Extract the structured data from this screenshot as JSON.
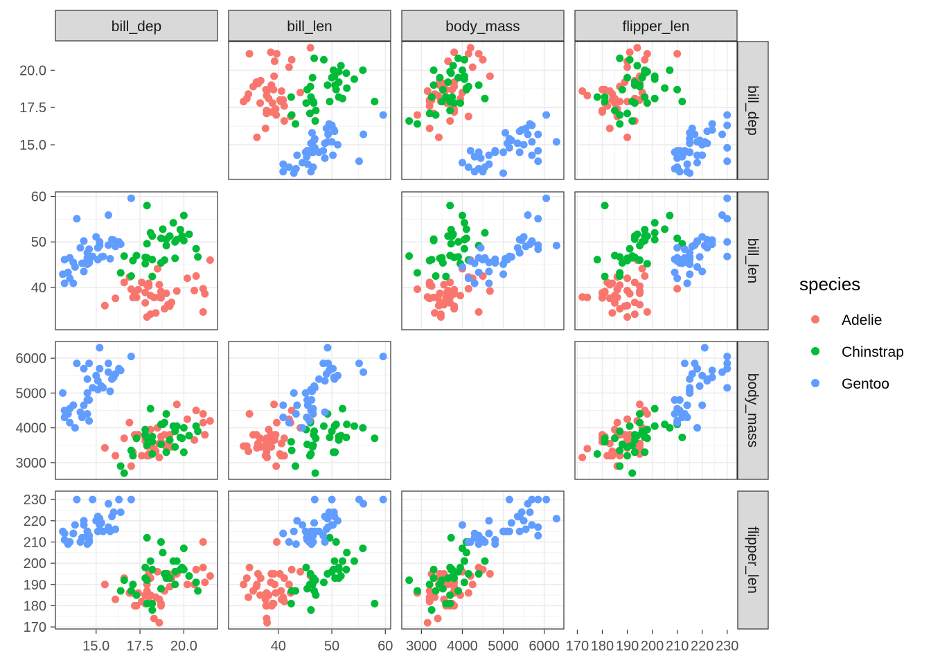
{
  "chart_data": {
    "type": "scatter",
    "title": "",
    "variables": [
      "bill_dep",
      "bill_len",
      "body_mass",
      "flipper_len"
    ],
    "variable_ranges": {
      "bill_dep": [
        12.68,
        21.92
      ],
      "bill_len": [
        30.7,
        61.0
      ],
      "body_mass": [
        2520,
        6480
      ],
      "flipper_len": [
        169.05,
        233.95
      ]
    },
    "ticks": {
      "bill_dep": {
        "values": [
          15.0,
          17.5,
          20.0
        ],
        "labels": [
          "15.0",
          "17.5",
          "20.0"
        ]
      },
      "bill_len": {
        "values": [
          40,
          50,
          60
        ],
        "labels": [
          "40",
          "50",
          "60"
        ]
      },
      "body_mass": {
        "values": [
          3000,
          4000,
          5000,
          6000
        ],
        "labels": [
          "3000",
          "4000",
          "5000",
          "6000"
        ]
      },
      "flipper_len": {
        "values": [
          170,
          180,
          190,
          200,
          210,
          220,
          230
        ],
        "labels": [
          "170",
          "180",
          "190",
          "200",
          "210",
          "220",
          "230"
        ]
      }
    },
    "grid": true,
    "legend": {
      "title": "species",
      "position": "right"
    },
    "point_fields": [
      "bill_dep",
      "bill_len",
      "body_mass",
      "flipper_len"
    ],
    "series": [
      {
        "name": "Adelie",
        "color": "#F8766D",
        "points": [
          [
            18.7,
            39.1,
            3750,
            181
          ],
          [
            17.4,
            39.5,
            3800,
            186
          ],
          [
            18.0,
            40.3,
            3250,
            195
          ],
          [
            19.3,
            36.7,
            3450,
            193
          ],
          [
            20.6,
            39.3,
            3650,
            190
          ],
          [
            17.8,
            38.9,
            3625,
            181
          ],
          [
            19.6,
            39.2,
            4675,
            195
          ],
          [
            18.1,
            34.1,
            3475,
            193
          ],
          [
            20.2,
            42.0,
            4250,
            190
          ],
          [
            17.1,
            37.8,
            3300,
            186
          ],
          [
            17.3,
            37.8,
            3700,
            180
          ],
          [
            17.6,
            41.1,
            3200,
            182
          ],
          [
            21.2,
            38.6,
            3800,
            191
          ],
          [
            21.1,
            34.6,
            4400,
            198
          ],
          [
            17.8,
            36.6,
            3700,
            185
          ],
          [
            19.0,
            38.7,
            3450,
            195
          ],
          [
            20.7,
            42.5,
            4500,
            197
          ],
          [
            18.4,
            34.4,
            3325,
            184
          ],
          [
            21.5,
            46.0,
            4200,
            194
          ],
          [
            18.3,
            37.8,
            3400,
            174
          ],
          [
            18.7,
            37.7,
            3600,
            180
          ],
          [
            19.2,
            35.9,
            3800,
            189
          ],
          [
            18.1,
            38.2,
            3950,
            185
          ],
          [
            17.2,
            38.8,
            3800,
            180
          ],
          [
            18.9,
            35.3,
            3800,
            187
          ],
          [
            18.6,
            40.6,
            3550,
            183
          ],
          [
            17.9,
            40.5,
            3200,
            187
          ],
          [
            18.6,
            37.9,
            3150,
            172
          ],
          [
            16.6,
            41.1,
            3700,
            193
          ],
          [
            19.1,
            36.2,
            3550,
            195
          ],
          [
            18.0,
            40.9,
            3200,
            184
          ],
          [
            17.9,
            33.5,
            3475,
            190
          ],
          [
            16.1,
            37.6,
            3200,
            183
          ],
          [
            21.1,
            39.7,
            4150,
            210
          ],
          [
            17.0,
            39.6,
            2900,
            186
          ],
          [
            18.5,
            44.1,
            4000,
            196
          ],
          [
            15.5,
            36.0,
            3425,
            190
          ],
          [
            16.9,
            42.3,
            4150,
            186
          ]
        ]
      },
      {
        "name": "Chinstrap",
        "color": "#00BA38",
        "points": [
          [
            17.9,
            46.5,
            3500,
            192
          ],
          [
            19.5,
            50.0,
            3900,
            196
          ],
          [
            19.2,
            51.3,
            3650,
            193
          ],
          [
            18.7,
            45.4,
            3525,
            188
          ],
          [
            19.8,
            52.7,
            3725,
            197
          ],
          [
            17.8,
            45.2,
            3950,
            198
          ],
          [
            18.2,
            46.1,
            3250,
            178
          ],
          [
            18.2,
            51.3,
            3750,
            197
          ],
          [
            18.9,
            46.0,
            4150,
            195
          ],
          [
            19.9,
            51.3,
            3700,
            198
          ],
          [
            17.8,
            46.6,
            3800,
            193
          ],
          [
            20.3,
            51.7,
            3775,
            194
          ],
          [
            17.3,
            47.0,
            3700,
            185
          ],
          [
            18.1,
            52.0,
            4550,
            201
          ],
          [
            17.1,
            45.9,
            3200,
            190
          ],
          [
            19.6,
            50.5,
            4050,
            201
          ],
          [
            20.0,
            50.3,
            3300,
            197
          ],
          [
            17.9,
            58.0,
            3700,
            181
          ],
          [
            19.5,
            46.4,
            3450,
            190
          ],
          [
            19.0,
            49.2,
            4400,
            195
          ],
          [
            18.2,
            42.4,
            3600,
            181
          ],
          [
            20.7,
            48.5,
            4050,
            191
          ],
          [
            16.4,
            43.2,
            2900,
            187
          ],
          [
            19.0,
            50.6,
            3300,
            193
          ],
          [
            20.8,
            46.7,
            3900,
            187
          ],
          [
            18.8,
            52.8,
            4100,
            205
          ],
          [
            19.4,
            54.2,
            4050,
            201
          ],
          [
            17.0,
            42.5,
            3350,
            187
          ],
          [
            17.9,
            49.6,
            3725,
            212
          ],
          [
            18.7,
            50.8,
            4100,
            210
          ],
          [
            16.6,
            46.9,
            2700,
            192
          ],
          [
            20.0,
            55.8,
            4000,
            207
          ]
        ]
      },
      {
        "name": "Gentoo",
        "color": "#619CFF",
        "points": [
          [
            13.2,
            46.1,
            4500,
            211
          ],
          [
            16.3,
            50.0,
            5700,
            230
          ],
          [
            14.1,
            48.7,
            4450,
            210
          ],
          [
            15.2,
            50.0,
            5700,
            218
          ],
          [
            14.5,
            47.6,
            5400,
            215
          ],
          [
            13.5,
            46.5,
            4550,
            210
          ],
          [
            14.6,
            45.4,
            4800,
            211
          ],
          [
            15.3,
            46.7,
            5200,
            219
          ],
          [
            13.4,
            43.3,
            4400,
            209
          ],
          [
            15.4,
            46.8,
            5150,
            215
          ],
          [
            13.7,
            40.9,
            4650,
            214
          ],
          [
            16.1,
            49.0,
            5550,
            216
          ],
          [
            13.7,
            45.5,
            4650,
            214
          ],
          [
            14.6,
            48.4,
            5850,
            213
          ],
          [
            14.6,
            45.8,
            4200,
            210
          ],
          [
            15.7,
            49.3,
            5850,
            217
          ],
          [
            13.5,
            42.0,
            4150,
            210
          ],
          [
            15.2,
            49.2,
            6300,
            221
          ],
          [
            14.5,
            46.2,
            4800,
            209
          ],
          [
            15.1,
            48.7,
            5350,
            222
          ],
          [
            14.3,
            50.2,
            5700,
            218
          ],
          [
            14.5,
            45.1,
            5000,
            215
          ],
          [
            14.5,
            46.5,
            4400,
            213
          ],
          [
            15.8,
            46.3,
            5050,
            215
          ],
          [
            13.1,
            42.9,
            5000,
            215
          ],
          [
            15.1,
            46.1,
            5100,
            215
          ],
          [
            16.0,
            50.4,
            5450,
            224
          ],
          [
            14.2,
            45.3,
            4300,
            212
          ],
          [
            17.0,
            59.6,
            6050,
            230
          ],
          [
            15.9,
            50.5,
            5400,
            222
          ],
          [
            14.8,
            46.8,
            5150,
            230
          ],
          [
            16.4,
            49.5,
            5650,
            224
          ],
          [
            13.8,
            44.5,
            4000,
            218
          ],
          [
            15.0,
            51.1,
            5500,
            220
          ],
          [
            14.3,
            43.5,
            4650,
            220
          ],
          [
            15.7,
            55.9,
            5600,
            228
          ],
          [
            13.2,
            40.9,
            4300,
            214
          ],
          [
            13.9,
            55.1,
            5850,
            230
          ]
        ]
      }
    ]
  }
}
